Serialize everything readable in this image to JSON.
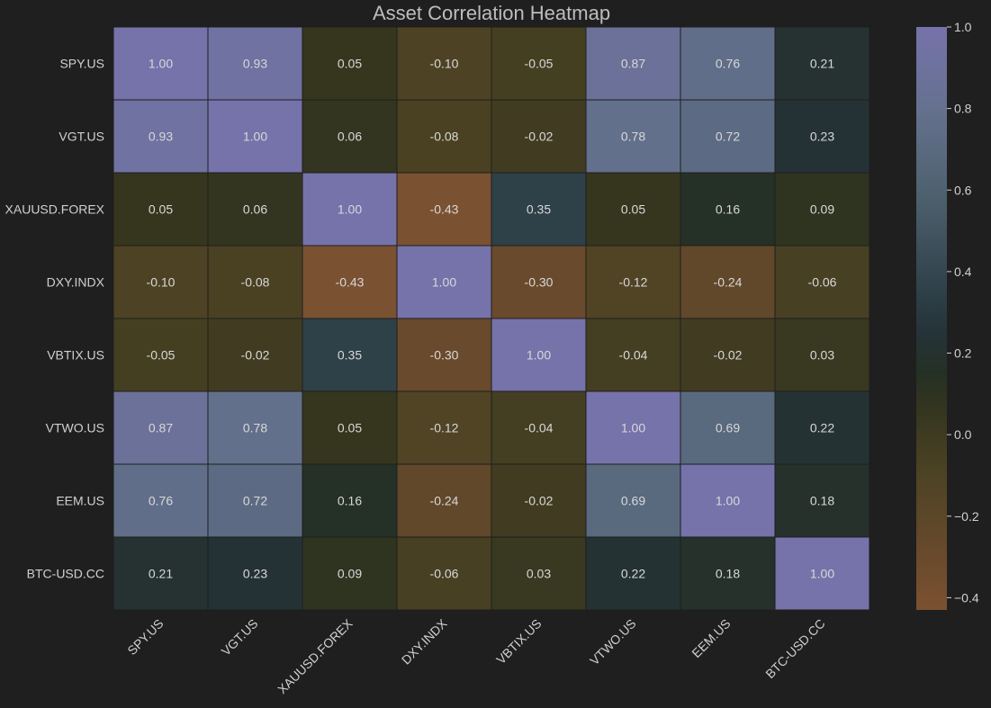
{
  "chart_data": {
    "type": "heatmap",
    "title": "Asset Correlation Heatmap",
    "xlabel": "",
    "ylabel": "",
    "labels": [
      "SPY.US",
      "VGT.US",
      "XAUUSD.FOREX",
      "DXY.INDX",
      "VBTIX.US",
      "VTWO.US",
      "EEM.US",
      "BTC-USD.CC"
    ],
    "matrix": [
      [
        1.0,
        0.93,
        0.05,
        -0.1,
        -0.05,
        0.87,
        0.76,
        0.21
      ],
      [
        0.93,
        1.0,
        0.06,
        -0.08,
        -0.02,
        0.78,
        0.72,
        0.23
      ],
      [
        0.05,
        0.06,
        1.0,
        -0.43,
        0.35,
        0.05,
        0.16,
        0.09
      ],
      [
        -0.1,
        -0.08,
        -0.43,
        1.0,
        -0.3,
        -0.12,
        -0.24,
        -0.06
      ],
      [
        -0.05,
        -0.02,
        0.35,
        -0.3,
        1.0,
        -0.04,
        -0.02,
        0.03
      ],
      [
        0.87,
        0.78,
        0.05,
        -0.12,
        -0.04,
        1.0,
        0.69,
        0.22
      ],
      [
        0.76,
        0.72,
        0.16,
        -0.24,
        -0.02,
        0.69,
        1.0,
        0.18
      ],
      [
        0.21,
        0.23,
        0.09,
        -0.06,
        0.03,
        0.22,
        0.18,
        1.0
      ]
    ],
    "annotation_format": "2 decimals",
    "colorbar": {
      "min": -0.43,
      "max": 1.0,
      "ticks": [
        1.0,
        0.8,
        0.6,
        0.4,
        0.2,
        0.0,
        -0.2,
        -0.4
      ],
      "tick_labels": [
        "1.0",
        "0.8",
        "0.6",
        "0.4",
        "0.2",
        "0.0",
        "−0.2",
        "−0.4"
      ],
      "stops": [
        {
          "v": -0.43,
          "color": "#7a5131"
        },
        {
          "v": -0.3,
          "color": "#6a4a2c"
        },
        {
          "v": -0.1,
          "color": "#4d4324"
        },
        {
          "v": 0.05,
          "color": "#36361f"
        },
        {
          "v": 0.15,
          "color": "#253024"
        },
        {
          "v": 0.25,
          "color": "#253339"
        },
        {
          "v": 0.35,
          "color": "#2e4048"
        },
        {
          "v": 0.6,
          "color": "#4f6270"
        },
        {
          "v": 0.8,
          "color": "#65718f"
        },
        {
          "v": 1.0,
          "color": "#7672aa"
        }
      ]
    },
    "grid": false,
    "background_color": "#1f1f1f",
    "cell_border_color": "#1f1f1f"
  }
}
